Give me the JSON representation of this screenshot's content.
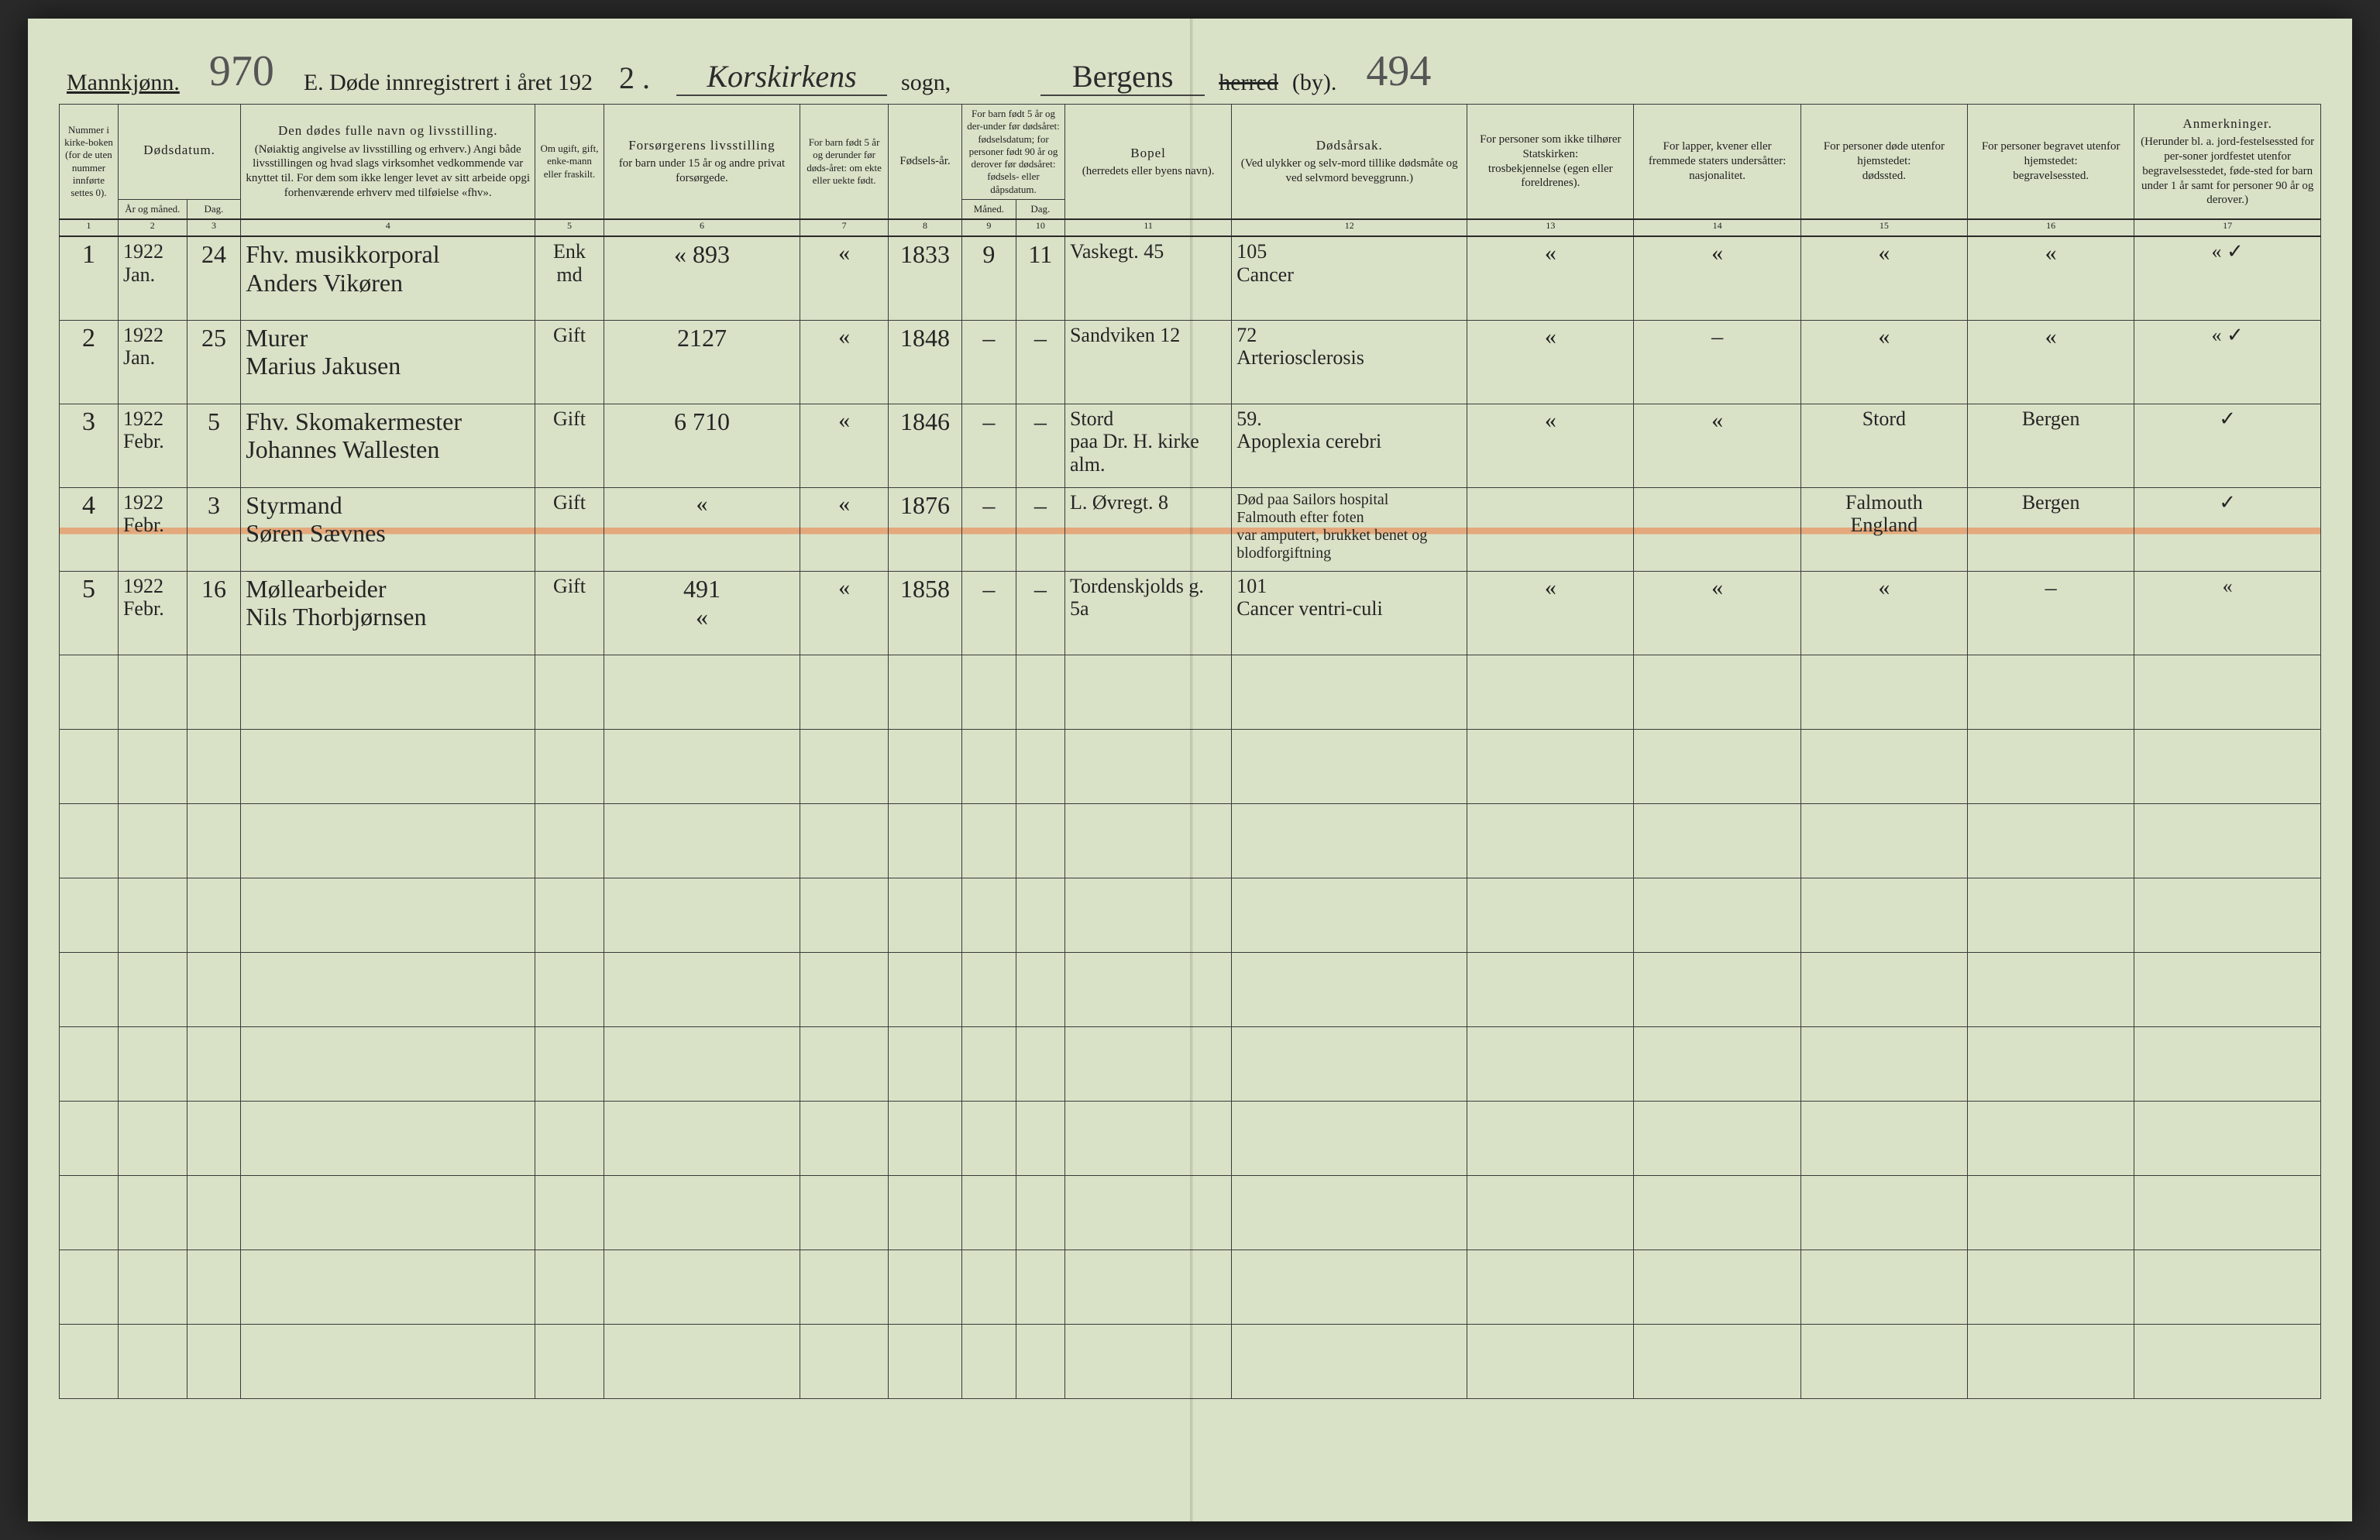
{
  "header": {
    "gender_label": "Mannkjønn.",
    "page_left_hw": "970",
    "title_prefix": "E.  Døde innregistrert i året 192",
    "year_suffix_hw": "2 .",
    "parish_hw": "Korskirkens",
    "sogn_label": "sogn,",
    "district_hw": "Bergens",
    "herred_label_struck": "herred",
    "by_label": "(by).",
    "page_right_hw": "494"
  },
  "columns": {
    "c1": "Nummer i kirke-boken (for de uten nummer innførte settes 0).",
    "c2_title": "Dødsdatum.",
    "c2a": "År og måned.",
    "c2b": "Dag.",
    "c4_title": "Den dødes fulle navn og livsstilling.",
    "c4_sub": "(Nøiaktig angivelse av livsstilling og erhverv.) Angi både livsstillingen og hvad slags virksomhet vedkommende var knyttet til. For dem som ikke lenger levet av sitt arbeide opgi forhenværende erhverv med tilføielse «fhv».",
    "c5": "Om ugift, gift, enke-mann eller fraskilt.",
    "c6_title": "Forsørgerens livsstilling",
    "c6_sub": "for barn under 15 år og andre privat forsørgede.",
    "c7": "For barn født 5 år og derunder før døds-året: om ekte eller uekte født.",
    "c8": "Fødsels-år.",
    "c9_title": "For barn født 5 år og der-under før dødsåret: fødselsdatum; for personer født 90 år og derover før dødsåret: fødsels- eller dåpsdatum.",
    "c9a": "Måned.",
    "c9b": "Dag.",
    "c11_title": "Bopel",
    "c11_sub": "(herredets eller byens navn).",
    "c12_title": "Dødsårsak.",
    "c12_sub": "(Ved ulykker og selv-mord tillike dødsmåte og ved selvmord beveggrunn.)",
    "c13_title": "For personer som ikke tilhører Statskirken:",
    "c13_sub": "trosbekjennelse (egen eller foreldrenes).",
    "c14_title": "For lapper, kvener eller fremmede staters undersåtter:",
    "c14_sub": "nasjonalitet.",
    "c15_title": "For personer døde utenfor hjemstedet:",
    "c15_sub": "dødssted.",
    "c16_title": "For personer begravet utenfor hjemstedet:",
    "c16_sub": "begravelsessted.",
    "c17_title": "Anmerkninger.",
    "c17_sub": "(Herunder bl. a. jord-festelsessted for per-soner jordfestet utenfor begravelsesstedet, føde-sted for barn under 1 år samt for personer 90 år og derover.)"
  },
  "colnums": [
    "1",
    "2",
    "3",
    "4",
    "5",
    "6",
    "7",
    "8",
    "9",
    "10",
    "11",
    "12",
    "13",
    "14",
    "15",
    "16",
    "17"
  ],
  "rows": [
    {
      "n": "1",
      "year_month": "1922\nJan.",
      "day": "24",
      "name": "Fhv. musikkorporal\nAnders Vikøren",
      "civil": "Enk\nmd",
      "provider": "« 893",
      "ekte": "«",
      "birth": "1833",
      "bm": "9",
      "bd": "11",
      "residence": "Vaskegt. 45",
      "cause": "105\nCancer",
      "c13": "«",
      "c14": "«",
      "c15": "«",
      "c16": "«",
      "c17": "« ✓"
    },
    {
      "n": "2",
      "year_month": "1922\nJan.",
      "day": "25",
      "name": "Murer\nMarius Jakusen",
      "civil": "Gift",
      "provider": "2127",
      "ekte": "«",
      "birth": "1848",
      "bm": "–",
      "bd": "–",
      "residence": "Sandviken 12",
      "cause": "72\nArteriosclerosis",
      "c13": "«",
      "c14": "–",
      "c15": "«",
      "c16": "«",
      "c17": "« ✓"
    },
    {
      "n": "3",
      "year_month": "1922\nFebr.",
      "day": "5",
      "name": "Fhv. Skomakermester\nJohannes Wallesten",
      "civil": "Gift",
      "provider": "6 710",
      "ekte": "«",
      "birth": "1846",
      "bm": "–",
      "bd": "–",
      "residence": "Stord\npaa Dr. H. kirke alm.",
      "cause": "59.\nApoplexia cerebri",
      "c13": "«",
      "c14": "«",
      "c15": "Stord",
      "c16": "Bergen",
      "c17": "✓"
    },
    {
      "n": "4",
      "year_month": "1922\nFebr.",
      "day": "3",
      "name": "Styrmand\nSøren Sævnes",
      "civil": "Gift",
      "provider": "«",
      "ekte": "«",
      "birth": "1876",
      "bm": "–",
      "bd": "–",
      "residence": "L. Øvregt. 8",
      "cause": "Død paa Sailors hospital\nFalmouth efter foten\nvar amputert, brukket benet og blodforgiftning",
      "c13": "",
      "c14": "",
      "c15": "Falmouth\nEngland",
      "c16": "Bergen",
      "c17": "✓"
    },
    {
      "n": "5",
      "year_month": "1922\nFebr.",
      "day": "16",
      "name": "Møllearbeider\nNils Thorbjørnsen",
      "civil": "Gift",
      "provider": "491\n«",
      "ekte": "«",
      "birth": "1858",
      "bm": "–",
      "bd": "–",
      "residence": "Tordenskjolds g. 5a",
      "cause": "101\nCancer ventri-culi",
      "c13": "«",
      "c14": "«",
      "c15": "«",
      "c16": "–",
      "c17": "«"
    }
  ],
  "style": {
    "paper_bg": "#d9e2c7",
    "ink": "#222222",
    "rule": "#3a3a3a",
    "orange_line": "#eb783c",
    "hw_color": "#2b2b2b",
    "page_no_color": "#555555"
  }
}
